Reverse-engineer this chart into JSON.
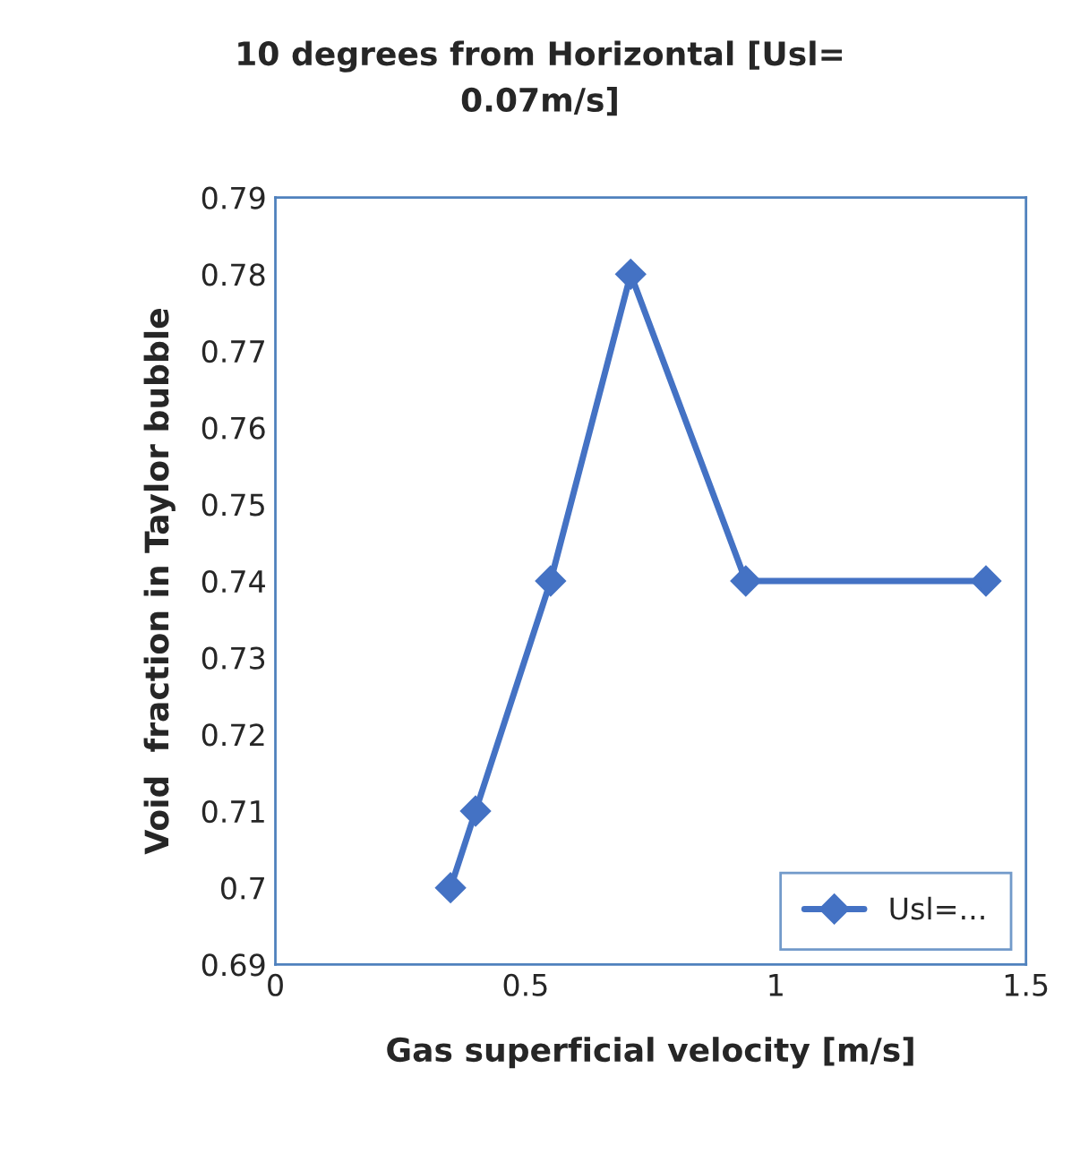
{
  "chart_data": {
    "type": "line",
    "title": "10 degrees from Horizontal [Usl=\n0.07m/s]",
    "xlabel": "Gas superficial velocity [m/s]",
    "ylabel": "Void  fraction in Taylor bubble",
    "series": [
      {
        "name": "Usl=...",
        "color": "#4472c4",
        "x": [
          0.35,
          0.4,
          0.55,
          0.71,
          0.94,
          1.42
        ],
        "values": [
          0.7,
          0.71,
          0.74,
          0.78,
          0.74,
          0.74
        ]
      }
    ],
    "xlim": [
      0,
      1.5
    ],
    "xticks": [
      0,
      0.5,
      1,
      1.5
    ],
    "ylim": [
      0.69,
      0.79
    ],
    "yticks": [
      0.69,
      0.7,
      0.71,
      0.72,
      0.73,
      0.74,
      0.75,
      0.76,
      0.77,
      0.78,
      0.79
    ],
    "marker": "diamond",
    "line_style": "solid",
    "grid": false,
    "legend": "bottom right"
  }
}
